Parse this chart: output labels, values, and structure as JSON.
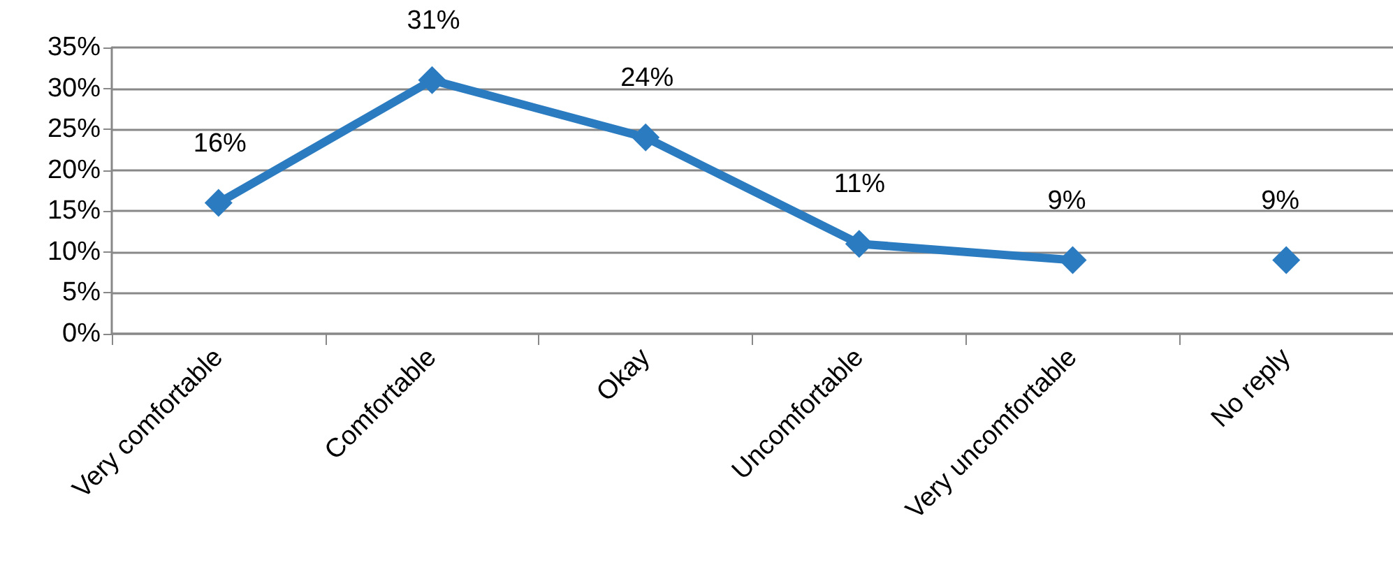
{
  "chart_data": {
    "type": "line",
    "categories": [
      "Very comfortable",
      "Comfortable",
      "Okay",
      "Uncomfortable",
      "Very uncomfortable",
      "No reply"
    ],
    "series": [
      {
        "color": "#2b7bc1",
        "values": [
          16,
          31,
          24,
          11,
          9,
          null
        ],
        "value_labels": [
          "16%",
          "31%",
          "24%",
          "11%",
          "9%",
          null
        ]
      },
      {
        "type": "scatter",
        "color": "#2b7bc1",
        "values": [
          null,
          null,
          null,
          null,
          null,
          9
        ],
        "value_labels": [
          null,
          null,
          null,
          null,
          null,
          "9%"
        ]
      }
    ],
    "ylim": [
      0,
      35
    ],
    "yticks": [
      {
        "value": 0,
        "label": "0%"
      },
      {
        "value": 5,
        "label": "5%"
      },
      {
        "value": 10,
        "label": "10%"
      },
      {
        "value": 15,
        "label": "15%"
      },
      {
        "value": 20,
        "label": "20%"
      },
      {
        "value": 25,
        "label": "25%"
      },
      {
        "value": 30,
        "label": "30%"
      },
      {
        "value": 35,
        "label": "35%"
      }
    ],
    "grid": "y",
    "marker": "diamond",
    "line_style": "solid"
  }
}
